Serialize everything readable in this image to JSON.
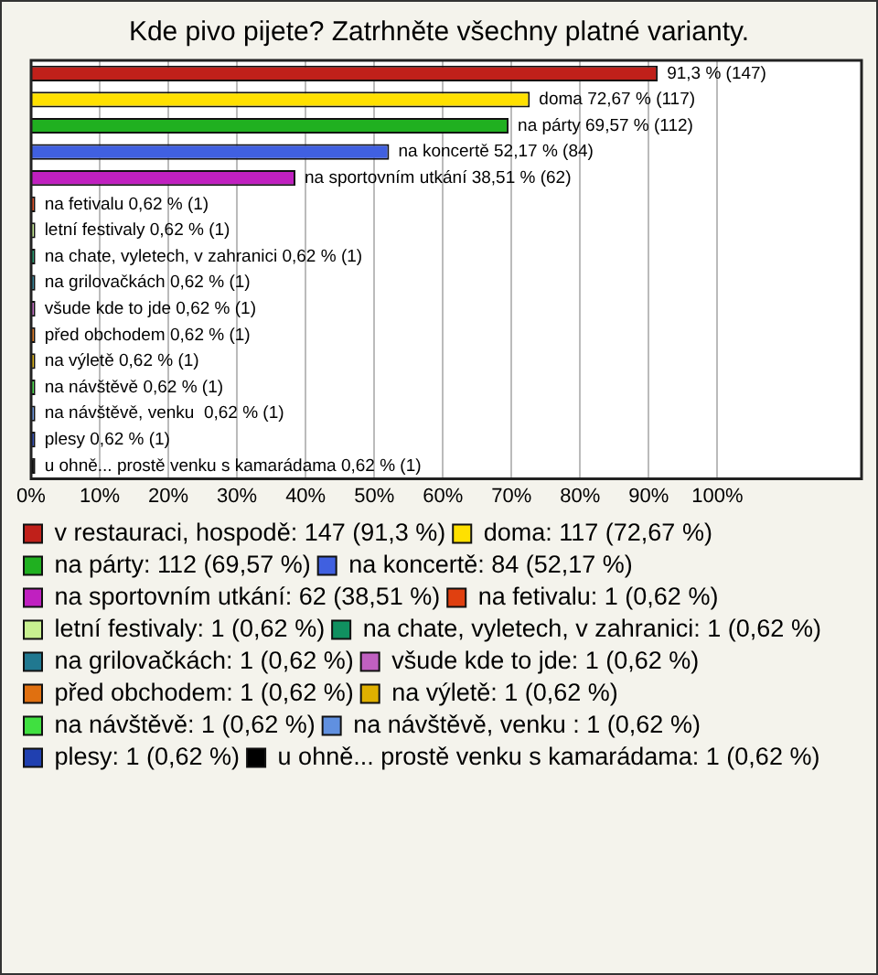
{
  "chart_data": {
    "type": "bar",
    "orientation": "horizontal",
    "title": "Kde pivo pijete? Zatrhněte všechny platné varianty.",
    "categories": [
      null,
      null,
      null,
      null,
      null,
      null,
      null,
      null,
      null,
      null,
      null,
      null,
      null,
      null,
      null,
      null
    ],
    "series": [
      {
        "name": "v restauraci, hospodě: 147 (91,3 %)",
        "color": "#c0201a",
        "values": [
          91.3,
          null,
          null,
          null,
          null,
          null,
          null,
          null,
          null,
          null,
          null,
          null,
          null,
          null,
          null,
          null
        ],
        "value_labels": [
          "91,3 % (147)",
          null,
          null,
          null,
          null,
          null,
          null,
          null,
          null,
          null,
          null,
          null,
          null,
          null,
          null,
          null
        ]
      },
      {
        "name": "doma: 117 (72,67 %)",
        "color": "#ffe000",
        "values": [
          null,
          72.67,
          null,
          null,
          null,
          null,
          null,
          null,
          null,
          null,
          null,
          null,
          null,
          null,
          null,
          null
        ],
        "value_labels": [
          null,
          "doma 72,67 % (117)",
          null,
          null,
          null,
          null,
          null,
          null,
          null,
          null,
          null,
          null,
          null,
          null,
          null,
          null
        ]
      },
      {
        "name": "na párty: 112 (69,57 %)",
        "color": "#20b020",
        "values": [
          null,
          null,
          69.57,
          null,
          null,
          null,
          null,
          null,
          null,
          null,
          null,
          null,
          null,
          null,
          null,
          null
        ],
        "value_labels": [
          null,
          null,
          "na párty 69,57 % (112)",
          null,
          null,
          null,
          null,
          null,
          null,
          null,
          null,
          null,
          null,
          null,
          null,
          null
        ]
      },
      {
        "name": "na koncertě: 84 (52,17 %)",
        "color": "#4060e0",
        "values": [
          null,
          null,
          null,
          52.17,
          null,
          null,
          null,
          null,
          null,
          null,
          null,
          null,
          null,
          null,
          null,
          null
        ],
        "value_labels": [
          null,
          null,
          null,
          "na koncertě 52,17 % (84)",
          null,
          null,
          null,
          null,
          null,
          null,
          null,
          null,
          null,
          null,
          null,
          null
        ]
      },
      {
        "name": "na sportovním utkání: 62 (38,51 %)",
        "color": "#c020c0",
        "values": [
          null,
          null,
          null,
          null,
          38.51,
          null,
          null,
          null,
          null,
          null,
          null,
          null,
          null,
          null,
          null,
          null
        ],
        "value_labels": [
          null,
          null,
          null,
          null,
          "na sportovním utkání 38,51 % (62)",
          null,
          null,
          null,
          null,
          null,
          null,
          null,
          null,
          null,
          null,
          null
        ]
      },
      {
        "name": "na fetivalu: 1 (0,62 %)",
        "color": "#e04010",
        "values": [
          null,
          null,
          null,
          null,
          null,
          0.62,
          null,
          null,
          null,
          null,
          null,
          null,
          null,
          null,
          null,
          null
        ],
        "value_labels": [
          null,
          null,
          null,
          null,
          null,
          "na fetivalu 0,62 % (1)",
          null,
          null,
          null,
          null,
          null,
          null,
          null,
          null,
          null,
          null
        ]
      },
      {
        "name": "letní festivaly: 1 (0,62 %)",
        "color": "#c8f090",
        "values": [
          null,
          null,
          null,
          null,
          null,
          null,
          0.62,
          null,
          null,
          null,
          null,
          null,
          null,
          null,
          null,
          null
        ],
        "value_labels": [
          null,
          null,
          null,
          null,
          null,
          null,
          "letní festivaly 0,62 % (1)",
          null,
          null,
          null,
          null,
          null,
          null,
          null,
          null,
          null
        ]
      },
      {
        "name": "na chate, vyletech, v zahranici: 1 (0,62 %)",
        "color": "#109060",
        "values": [
          null,
          null,
          null,
          null,
          null,
          null,
          null,
          0.62,
          null,
          null,
          null,
          null,
          null,
          null,
          null,
          null
        ],
        "value_labels": [
          null,
          null,
          null,
          null,
          null,
          null,
          null,
          "na chate, vyletech, v zahranici 0,62 % (1)",
          null,
          null,
          null,
          null,
          null,
          null,
          null,
          null
        ]
      },
      {
        "name": "na grilovačkách: 1 (0,62 %)",
        "color": "#207890",
        "values": [
          null,
          null,
          null,
          null,
          null,
          null,
          null,
          null,
          0.62,
          null,
          null,
          null,
          null,
          null,
          null,
          null
        ],
        "value_labels": [
          null,
          null,
          null,
          null,
          null,
          null,
          null,
          null,
          "na grilovačkách 0,62 % (1)",
          null,
          null,
          null,
          null,
          null,
          null,
          null
        ]
      },
      {
        "name": "všude kde to jde: 1 (0,62 %)",
        "color": "#c060c0",
        "values": [
          null,
          null,
          null,
          null,
          null,
          null,
          null,
          null,
          null,
          0.62,
          null,
          null,
          null,
          null,
          null,
          null
        ],
        "value_labels": [
          null,
          null,
          null,
          null,
          null,
          null,
          null,
          null,
          null,
          "všude kde to jde 0,62 % (1)",
          null,
          null,
          null,
          null,
          null,
          null
        ]
      },
      {
        "name": "před obchodem: 1 (0,62 %)",
        "color": "#e07010",
        "values": [
          null,
          null,
          null,
          null,
          null,
          null,
          null,
          null,
          null,
          null,
          0.62,
          null,
          null,
          null,
          null,
          null
        ],
        "value_labels": [
          null,
          null,
          null,
          null,
          null,
          null,
          null,
          null,
          null,
          null,
          "před obchodem 0,62 % (1)",
          null,
          null,
          null,
          null,
          null
        ]
      },
      {
        "name": "na výletě: 1 (0,62 %)",
        "color": "#e0b000",
        "values": [
          null,
          null,
          null,
          null,
          null,
          null,
          null,
          null,
          null,
          null,
          null,
          0.62,
          null,
          null,
          null,
          null
        ],
        "value_labels": [
          null,
          null,
          null,
          null,
          null,
          null,
          null,
          null,
          null,
          null,
          null,
          "na výletě 0,62 % (1)",
          null,
          null,
          null,
          null
        ]
      },
      {
        "name": "na návštěvě: 1 (0,62 %)",
        "color": "#40e040",
        "values": [
          null,
          null,
          null,
          null,
          null,
          null,
          null,
          null,
          null,
          null,
          null,
          null,
          0.62,
          null,
          null,
          null
        ],
        "value_labels": [
          null,
          null,
          null,
          null,
          null,
          null,
          null,
          null,
          null,
          null,
          null,
          null,
          "na návštěvě 0,62 % (1)",
          null,
          null,
          null
        ]
      },
      {
        "name": "na návštěvě, venku : 1 (0,62 %)",
        "color": "#6090e0",
        "values": [
          null,
          null,
          null,
          null,
          null,
          null,
          null,
          null,
          null,
          null,
          null,
          null,
          null,
          0.62,
          null,
          null
        ],
        "value_labels": [
          null,
          null,
          null,
          null,
          null,
          null,
          null,
          null,
          null,
          null,
          null,
          null,
          null,
          "na návštěvě, venku  0,62 % (1)",
          null,
          null
        ]
      },
      {
        "name": "plesy: 1 (0,62 %)",
        "color": "#2040b0",
        "values": [
          null,
          null,
          null,
          null,
          null,
          null,
          null,
          null,
          null,
          null,
          null,
          null,
          null,
          null,
          0.62,
          null
        ],
        "value_labels": [
          null,
          null,
          null,
          null,
          null,
          null,
          null,
          null,
          null,
          null,
          null,
          null,
          null,
          null,
          "plesy 0,62 % (1)",
          null
        ]
      },
      {
        "name": "u ohně... prostě venku s kamarádama: 1 (0,62 %)",
        "color": "#000000",
        "values": [
          null,
          null,
          null,
          null,
          null,
          null,
          null,
          null,
          null,
          null,
          null,
          null,
          null,
          null,
          null,
          0.62
        ],
        "value_labels": [
          null,
          null,
          null,
          null,
          null,
          null,
          null,
          null,
          null,
          null,
          null,
          null,
          null,
          null,
          null,
          "u ohně... prostě venku s kamarádama 0,62 % (1)"
        ]
      }
    ],
    "xlim": [
      0,
      121
    ],
    "xticks": [
      {
        "value": 0,
        "label": "0%"
      },
      {
        "value": 10,
        "label": "10%"
      },
      {
        "value": 20,
        "label": "20%"
      },
      {
        "value": 30,
        "label": "30%"
      },
      {
        "value": 40,
        "label": "40%"
      },
      {
        "value": 50,
        "label": "50%"
      },
      {
        "value": 60,
        "label": "60%"
      },
      {
        "value": 70,
        "label": "70%"
      },
      {
        "value": 80,
        "label": "80%"
      },
      {
        "value": 90,
        "label": "90%"
      },
      {
        "value": 100,
        "label": "100%"
      }
    ],
    "grid": "x",
    "legend": "bottom",
    "tick_labels": "x"
  }
}
